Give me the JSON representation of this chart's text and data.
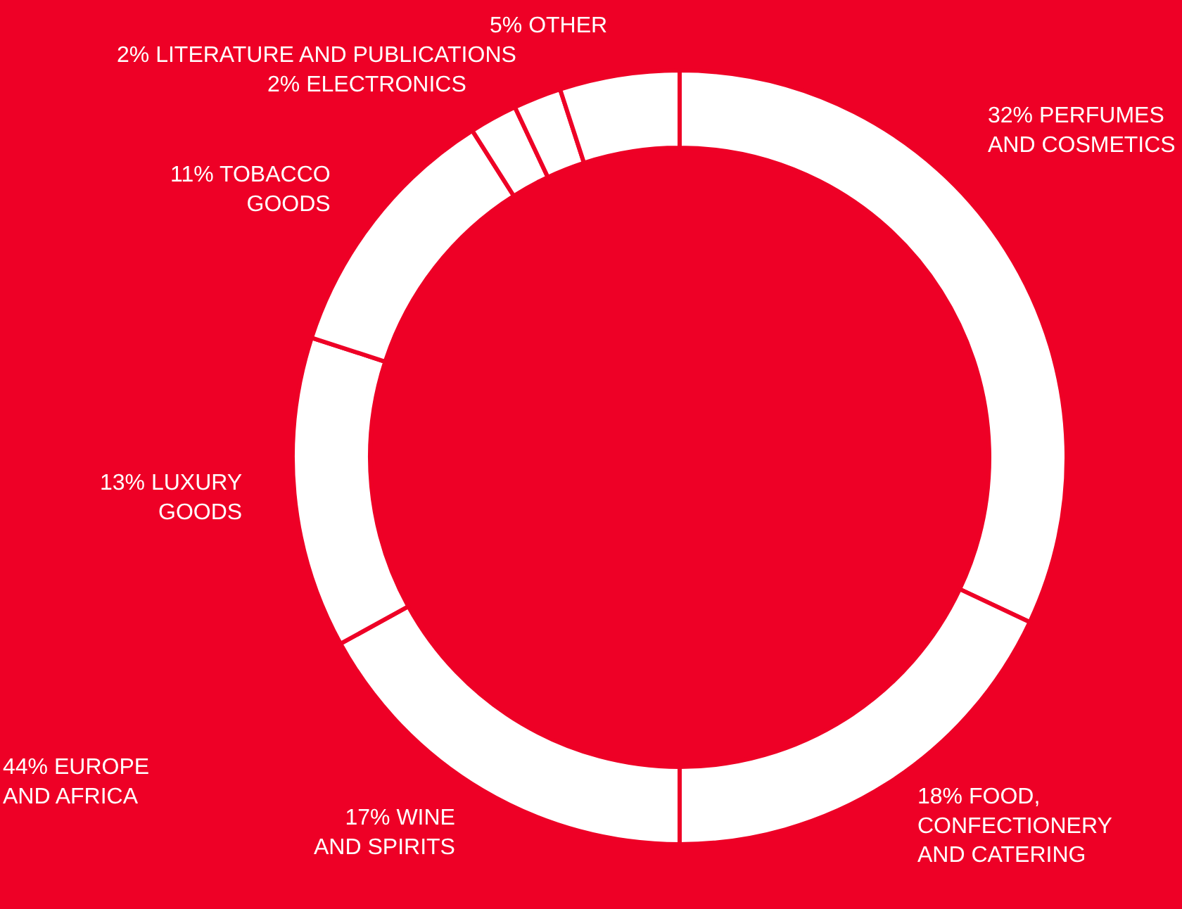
{
  "chart_data": {
    "type": "donut",
    "categories": [
      "32% PERFUMES\nAND COSMETICS",
      "18% FOOD,\nCONFECTIONERY\nAND CATERING",
      "17% WINE\nAND SPIRITS",
      "13% LUXURY\nGOODS",
      "11% TOBACCO\nGOODS",
      "2% ELECTRONICS",
      "2% LITERATURE AND PUBLICATIONS",
      "5% OTHER"
    ],
    "values": [
      32,
      18,
      17,
      13,
      11,
      2,
      2,
      5
    ],
    "colors": [
      "#ffffff",
      "#ffffff",
      "#ffffff",
      "#ffffff",
      "#ffffff",
      "#ffffff",
      "#ffffff",
      "#ffffff"
    ],
    "annotations": [
      "44% EUROPE\nAND AFRICA"
    ]
  }
}
